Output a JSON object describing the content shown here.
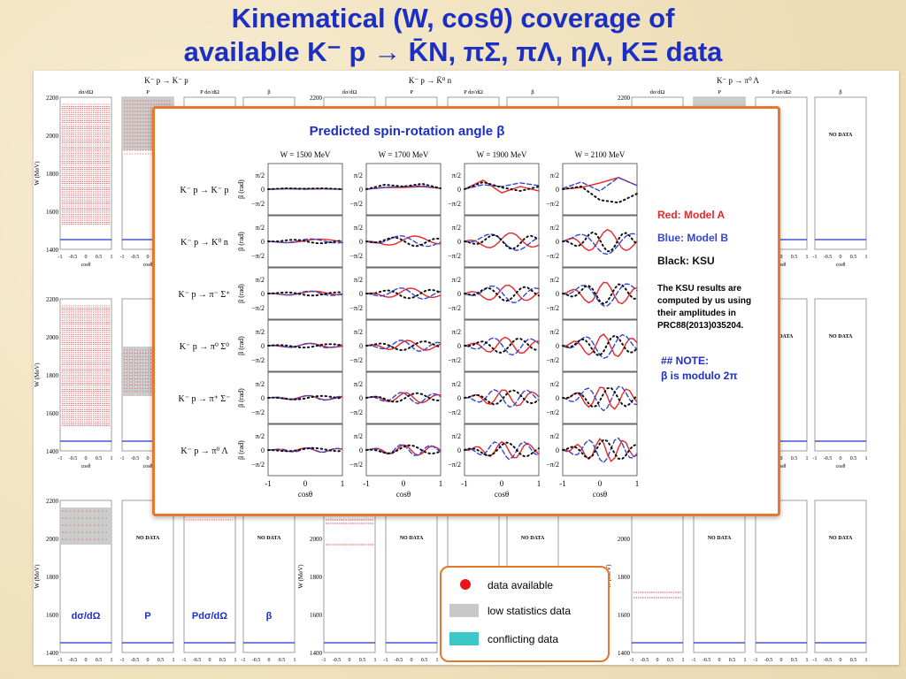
{
  "title": {
    "line1": "Kinematical (W, cosθ) coverage of",
    "line2": "available K⁻ p → K̄N, πΣ, πΛ, ηΛ, KΞ data"
  },
  "main": {
    "reaction_labels": [
      "K⁻ p → K⁻ p",
      "K⁻ p → K̄⁰ n",
      "K⁻ p → π⁰ Λ"
    ],
    "column_headers": [
      "dσ/dΩ",
      "P",
      "P dσ/dΩ",
      "β"
    ],
    "y_axis_label": "W (MeV)",
    "x_axis_label": "cosθ",
    "y_ticks": [
      "1400",
      "1600",
      "1800",
      "2000",
      "2200"
    ],
    "x_ticks": [
      "-1",
      "-0.5",
      "0",
      "0.5",
      "1"
    ],
    "no_data_text": "NO DATA",
    "bottom_labels": [
      "dσ/dΩ",
      "P",
      "Pdσ/dΩ",
      "β"
    ]
  },
  "overlay": {
    "title": "Predicted spin-rotation angle β",
    "energies": [
      "W = 1500 MeV",
      "W = 1700 MeV",
      "W = 1900 MeV",
      "W = 2100 MeV"
    ],
    "reactions": [
      "K⁻ p → K⁻ p",
      "K⁻ p → K⁰ n",
      "K⁻ p → π⁻ Σ⁺",
      "K⁻ p → π⁰ Σ⁰",
      "K⁻ p → π⁺ Σ⁻",
      "K⁻ p → π⁰ Λ"
    ],
    "y_axis_label": "β (rad)",
    "y_ticks": [
      "π/2",
      "0",
      "−π/2"
    ],
    "x_ticks": [
      "-1",
      "0",
      "1"
    ],
    "x_axis_label": "cosθ",
    "legend": {
      "red": "Red: Model A",
      "blue": "Blue: Model B",
      "black": "Black: KSU",
      "note_ksu": "The KSU results are computed by us using their amplitudes in PRC88(2013)035204.",
      "note_header": "## NOTE:",
      "note_body": "β is modulo 2π"
    },
    "colors": {
      "model_a": "#e8262a",
      "model_b": "#3447d2",
      "ksu": "#111111"
    }
  },
  "legend_box": {
    "items": [
      "data available",
      "low statistics data",
      "conflicting data"
    ],
    "colors": {
      "available": "#e8151b",
      "low_stat": "#c8c8c8",
      "conflicting": "#3cc8c8"
    }
  },
  "chart_data": {
    "type": "line",
    "title": "Predicted spin-rotation angle β",
    "xlabel": "cosθ",
    "ylabel": "β (rad)",
    "xlim": [
      -1,
      1
    ],
    "ylim": [
      -3.14,
      3.14
    ],
    "grid": false,
    "legend_placement": "right",
    "panels": [
      {
        "reaction": "K⁻ p → K⁻ p",
        "energy": "W = 1500 MeV",
        "series": [
          {
            "name": "Red: Model A",
            "x": [
              -1,
              -0.5,
              0,
              0.5,
              1
            ],
            "values": [
              0,
              0.05,
              0.05,
              0.05,
              0
            ]
          },
          {
            "name": "Blue: Model B",
            "x": [
              -1,
              -0.5,
              0,
              0.5,
              1
            ],
            "values": [
              0,
              0.05,
              0,
              0.05,
              0
            ]
          },
          {
            "name": "Black: KSU",
            "x": [
              -1,
              -0.5,
              0,
              0.5,
              1
            ],
            "values": [
              0,
              0.1,
              0.05,
              0.1,
              0
            ]
          }
        ]
      },
      {
        "reaction": "K⁻ p → K⁻ p",
        "energy": "W = 1700 MeV",
        "series": [
          {
            "name": "Red: Model A",
            "x": [
              -1,
              -0.5,
              0,
              0.5,
              1
            ],
            "values": [
              0,
              0.2,
              0.2,
              0.3,
              0.1
            ]
          },
          {
            "name": "Blue: Model B",
            "x": [
              -1,
              -0.5,
              0,
              0.5,
              1
            ],
            "values": [
              0,
              0.2,
              0.3,
              0.35,
              0.1
            ]
          },
          {
            "name": "Black: KSU",
            "x": [
              -1,
              -0.5,
              0,
              0.5,
              1
            ],
            "values": [
              0,
              0.5,
              0.3,
              0.6,
              0.1
            ]
          }
        ]
      },
      {
        "reaction": "K⁻ p → K⁻ p",
        "energy": "W = 1900 MeV",
        "series": [
          {
            "name": "Red: Model A",
            "x": [
              -1,
              -0.5,
              0,
              0.5,
              1
            ],
            "values": [
              0,
              1.0,
              -0.4,
              0.3,
              -0.2
            ]
          },
          {
            "name": "Blue: Model B",
            "x": [
              -1,
              -0.5,
              0,
              0.5,
              1
            ],
            "values": [
              0,
              0.5,
              0.3,
              0.7,
              0.4
            ]
          },
          {
            "name": "Black: KSU",
            "x": [
              -1,
              -0.5,
              0,
              0.5,
              1
            ],
            "values": [
              0,
              0.8,
              0.2,
              -0.2,
              0.3
            ]
          }
        ]
      },
      {
        "reaction": "K⁻ p → K⁻ p",
        "energy": "W = 2100 MeV",
        "series": [
          {
            "name": "Red: Model A",
            "x": [
              -1,
              -0.5,
              0,
              0.5,
              1
            ],
            "values": [
              0,
              0.2,
              0.7,
              1.3,
              0.4
            ]
          },
          {
            "name": "Blue: Model B",
            "x": [
              -1,
              -0.5,
              0,
              0.5,
              1
            ],
            "values": [
              0.1,
              0.8,
              -0.2,
              1.3,
              0.4
            ]
          },
          {
            "name": "Black: KSU",
            "x": [
              -1,
              -0.5,
              0,
              0.5,
              1
            ],
            "values": [
              0,
              0.3,
              -1.2,
              -1.5,
              -0.5
            ]
          }
        ]
      }
    ]
  }
}
